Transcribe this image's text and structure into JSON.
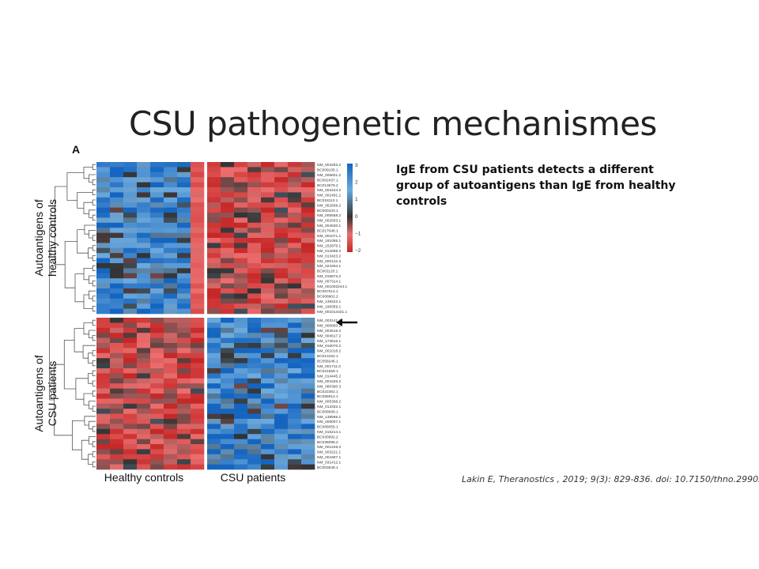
{
  "slide": {
    "title": "CSU pathogenetic mechanismes",
    "note": "IgE from CSU patients detects a different group of autoantigens than IgE from healthy controls",
    "citation": "Lakin E, Theranostics , 2019; 9(3): 829-836. doi: 10.7150/thno.29902"
  },
  "figure": {
    "panel_label": "A",
    "row_groups": [
      {
        "label_lines": [
          "Autoantigens of",
          "healthy controls"
        ],
        "rows": 30
      },
      {
        "label_lines": [
          "Autoantigens of",
          "CSU patients"
        ],
        "rows": 30
      }
    ],
    "column_groups": [
      {
        "label": "Healthy controls",
        "columns": 8
      },
      {
        "label": "CSU patients",
        "columns": 8
      }
    ],
    "gene_labels": [
      "NM_004283.2",
      "BC009105.1",
      "NM_006601.2",
      "BC002437.1",
      "BC013676.2",
      "NM_004444.2",
      "NM_002491.1",
      "BC018113.1",
      "NM_052838.2",
      "BC000103.1",
      "NM_005558.2",
      "NM_002503.1",
      "NM_004530.1",
      "BC017048.1",
      "NM_001071.1",
      "NM_181055.1",
      "NM_152876.1",
      "NM_012088.2",
      "NM_013423.2",
      "NM_000142.3",
      "NM_024294.1",
      "BC001120.1",
      "NM_015873.2",
      "NM_007314.1",
      "NM_001002244.1",
      "BC067014.1",
      "BC008902.2",
      "NM_138422.1",
      "NM_198359.1",
      "NM_001014431.1",
      "NM_003141.2",
      "NM_006850.2",
      "NM_002515.2",
      "NM_004617.2",
      "NM_173616.1",
      "NM_016070.2",
      "NM_001018.2",
      "BC013162.1",
      "BC058246.1",
      "NM_001711.3",
      "BC021559.1",
      "NM_014445.2",
      "NM_001626.2",
      "NM_080390.3",
      "BC022362.1",
      "BC065912.1",
      "NM_005398.2",
      "NM_013332.1",
      "BC008699.1",
      "NM_138565.1",
      "NM_006007.1",
      "BC068055.1",
      "NM_015214.1",
      "BC030092.2",
      "BC036096.2",
      "NM_001449.2",
      "NM_003221.1",
      "NM_001697.1",
      "NM_031412.1",
      "BC003548.1"
    ],
    "arrow_marks_gene": "NM_006850.2",
    "color_scale": {
      "ticks": [
        "3",
        "2",
        "1",
        "0",
        "−1",
        "−2"
      ],
      "high_color": "#1565c0",
      "mid_color": "#333333",
      "low_color": "#c62828"
    }
  }
}
